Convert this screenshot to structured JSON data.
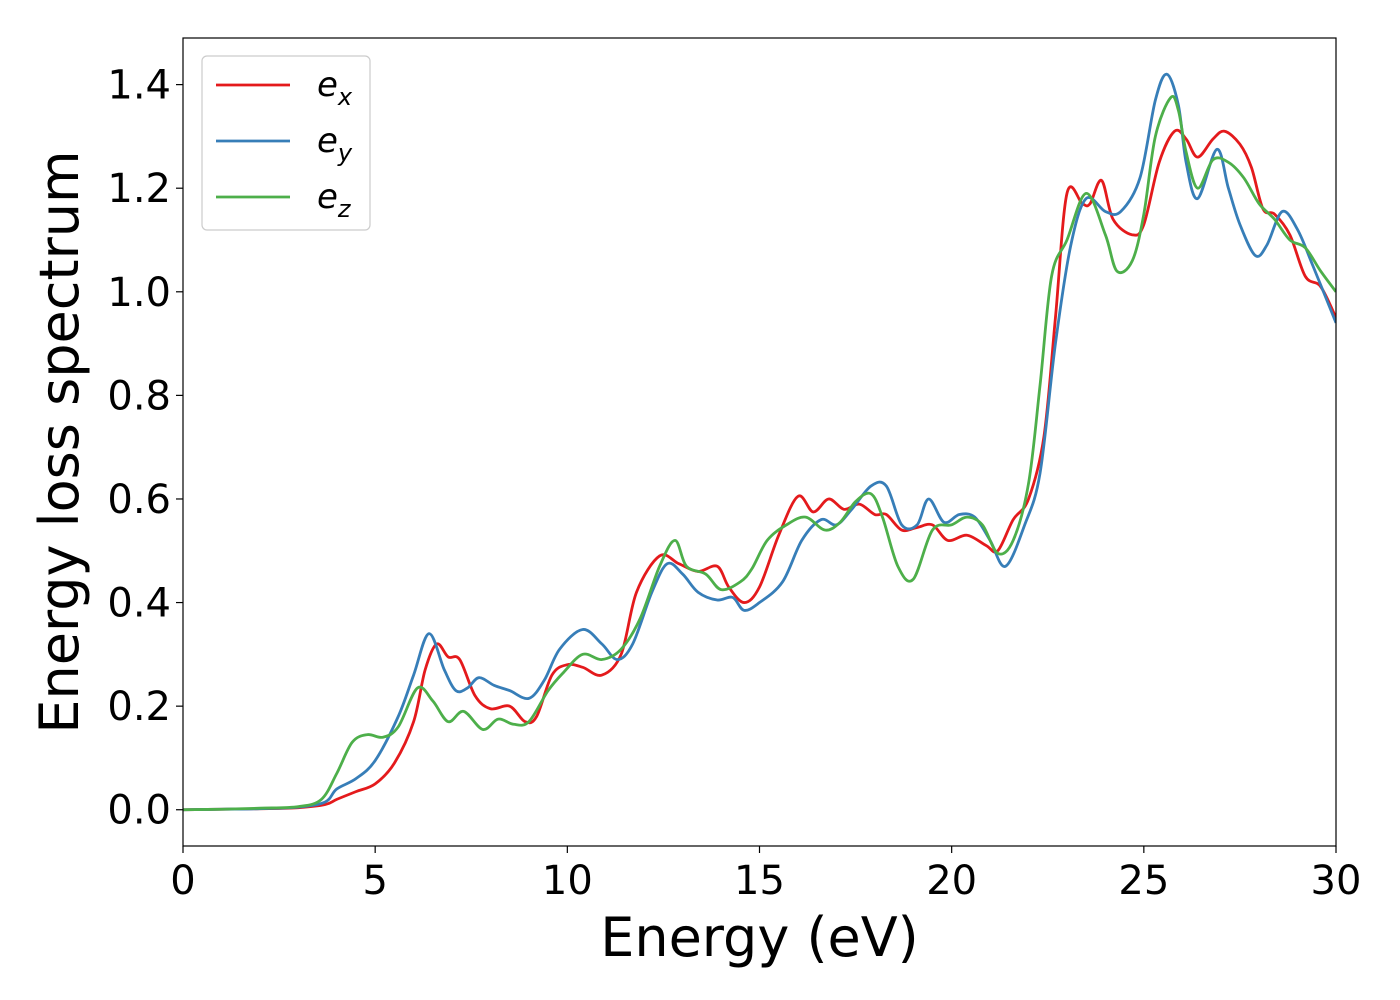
{
  "chart_data": {
    "type": "line",
    "title": "",
    "xlabel": "Energy (eV)",
    "ylabel": "Energy loss spectrum",
    "xlim": [
      0,
      30
    ],
    "ylim": [
      -0.07,
      1.49
    ],
    "xticks": [
      "0",
      "5",
      "10",
      "15",
      "20",
      "25",
      "30"
    ],
    "yticks": [
      "0.0",
      "0.2",
      "0.4",
      "0.6",
      "0.8",
      "1.0",
      "1.2",
      "1.4"
    ],
    "grid": false,
    "legend": "top-left",
    "series": [
      {
        "name": "e_x",
        "label_main": "e",
        "label_sub": "x",
        "color": "#e41a1c",
        "points": [
          [
            0,
            0
          ],
          [
            1,
            0.001
          ],
          [
            2,
            0.002
          ],
          [
            3,
            0.004
          ],
          [
            3.7,
            0.01
          ],
          [
            4,
            0.02
          ],
          [
            4.5,
            0.035
          ],
          [
            5,
            0.05
          ],
          [
            5.5,
            0.09
          ],
          [
            6,
            0.17
          ],
          [
            6.3,
            0.27
          ],
          [
            6.6,
            0.32
          ],
          [
            6.9,
            0.295
          ],
          [
            7.2,
            0.29
          ],
          [
            7.6,
            0.22
          ],
          [
            8,
            0.195
          ],
          [
            8.5,
            0.2
          ],
          [
            8.9,
            0.17
          ],
          [
            9.2,
            0.18
          ],
          [
            9.6,
            0.26
          ],
          [
            10,
            0.28
          ],
          [
            10.4,
            0.275
          ],
          [
            10.9,
            0.26
          ],
          [
            11.4,
            0.3
          ],
          [
            11.8,
            0.42
          ],
          [
            12.4,
            0.49
          ],
          [
            12.9,
            0.475
          ],
          [
            13.4,
            0.46
          ],
          [
            13.9,
            0.47
          ],
          [
            14.2,
            0.43
          ],
          [
            14.6,
            0.4
          ],
          [
            15,
            0.43
          ],
          [
            15.5,
            0.53
          ],
          [
            16,
            0.605
          ],
          [
            16.4,
            0.575
          ],
          [
            16.8,
            0.6
          ],
          [
            17.2,
            0.58
          ],
          [
            17.6,
            0.59
          ],
          [
            18,
            0.57
          ],
          [
            18.3,
            0.57
          ],
          [
            18.7,
            0.54
          ],
          [
            19.1,
            0.545
          ],
          [
            19.5,
            0.55
          ],
          [
            19.9,
            0.52
          ],
          [
            20.4,
            0.53
          ],
          [
            20.9,
            0.51
          ],
          [
            21.2,
            0.5
          ],
          [
            21.6,
            0.56
          ],
          [
            22,
            0.6
          ],
          [
            22.4,
            0.72
          ],
          [
            22.7,
            0.95
          ],
          [
            23,
            1.19
          ],
          [
            23.4,
            1.17
          ],
          [
            23.6,
            1.17
          ],
          [
            23.9,
            1.215
          ],
          [
            24.2,
            1.14
          ],
          [
            24.7,
            1.11
          ],
          [
            25,
            1.13
          ],
          [
            25.4,
            1.25
          ],
          [
            25.8,
            1.31
          ],
          [
            26.1,
            1.295
          ],
          [
            26.4,
            1.26
          ],
          [
            26.8,
            1.295
          ],
          [
            27.1,
            1.31
          ],
          [
            27.5,
            1.285
          ],
          [
            27.8,
            1.24
          ],
          [
            28.1,
            1.16
          ],
          [
            28.4,
            1.15
          ],
          [
            28.8,
            1.11
          ],
          [
            29.2,
            1.03
          ],
          [
            29.6,
            1.01
          ],
          [
            30,
            0.95
          ]
        ]
      },
      {
        "name": "e_y",
        "label_main": "e",
        "label_sub": "y",
        "color": "#377eb8",
        "points": [
          [
            0,
            0
          ],
          [
            1,
            0.001
          ],
          [
            2,
            0.002
          ],
          [
            3,
            0.005
          ],
          [
            3.7,
            0.015
          ],
          [
            4,
            0.04
          ],
          [
            4.5,
            0.06
          ],
          [
            5,
            0.095
          ],
          [
            5.6,
            0.18
          ],
          [
            6,
            0.26
          ],
          [
            6.4,
            0.34
          ],
          [
            6.8,
            0.27
          ],
          [
            7.1,
            0.23
          ],
          [
            7.4,
            0.235
          ],
          [
            7.7,
            0.255
          ],
          [
            8.1,
            0.24
          ],
          [
            8.5,
            0.23
          ],
          [
            9,
            0.215
          ],
          [
            9.4,
            0.25
          ],
          [
            9.8,
            0.31
          ],
          [
            10.4,
            0.348
          ],
          [
            10.9,
            0.32
          ],
          [
            11.3,
            0.29
          ],
          [
            11.7,
            0.32
          ],
          [
            12.2,
            0.42
          ],
          [
            12.6,
            0.475
          ],
          [
            13,
            0.455
          ],
          [
            13.4,
            0.42
          ],
          [
            13.9,
            0.405
          ],
          [
            14.3,
            0.41
          ],
          [
            14.6,
            0.385
          ],
          [
            15,
            0.4
          ],
          [
            15.6,
            0.44
          ],
          [
            16.1,
            0.52
          ],
          [
            16.6,
            0.56
          ],
          [
            17,
            0.55
          ],
          [
            17.4,
            0.58
          ],
          [
            17.9,
            0.625
          ],
          [
            18.3,
            0.625
          ],
          [
            18.7,
            0.55
          ],
          [
            19.1,
            0.55
          ],
          [
            19.4,
            0.6
          ],
          [
            19.8,
            0.555
          ],
          [
            20.2,
            0.57
          ],
          [
            20.6,
            0.565
          ],
          [
            21,
            0.52
          ],
          [
            21.4,
            0.47
          ],
          [
            21.9,
            0.55
          ],
          [
            22.3,
            0.65
          ],
          [
            22.7,
            0.9
          ],
          [
            23.1,
            1.09
          ],
          [
            23.5,
            1.18
          ],
          [
            24,
            1.155
          ],
          [
            24.4,
            1.155
          ],
          [
            24.9,
            1.22
          ],
          [
            25.3,
            1.37
          ],
          [
            25.6,
            1.42
          ],
          [
            25.9,
            1.36
          ],
          [
            26.1,
            1.25
          ],
          [
            26.4,
            1.18
          ],
          [
            26.9,
            1.275
          ],
          [
            27.2,
            1.2
          ],
          [
            27.5,
            1.13
          ],
          [
            27.9,
            1.07
          ],
          [
            28.2,
            1.09
          ],
          [
            28.6,
            1.155
          ],
          [
            29,
            1.12
          ],
          [
            29.4,
            1.05
          ],
          [
            30,
            0.94
          ]
        ]
      },
      {
        "name": "e_z",
        "label_main": "e",
        "label_sub": "z",
        "color": "#4daf4a",
        "points": [
          [
            0,
            0
          ],
          [
            1,
            0.001
          ],
          [
            2,
            0.003
          ],
          [
            3,
            0.006
          ],
          [
            3.6,
            0.02
          ],
          [
            4,
            0.07
          ],
          [
            4.4,
            0.13
          ],
          [
            4.8,
            0.145
          ],
          [
            5.2,
            0.14
          ],
          [
            5.6,
            0.16
          ],
          [
            6.1,
            0.235
          ],
          [
            6.5,
            0.21
          ],
          [
            6.9,
            0.17
          ],
          [
            7.3,
            0.19
          ],
          [
            7.8,
            0.155
          ],
          [
            8.2,
            0.175
          ],
          [
            8.6,
            0.165
          ],
          [
            9,
            0.17
          ],
          [
            9.5,
            0.23
          ],
          [
            9.9,
            0.265
          ],
          [
            10.4,
            0.3
          ],
          [
            10.9,
            0.29
          ],
          [
            11.4,
            0.31
          ],
          [
            11.9,
            0.37
          ],
          [
            12.4,
            0.47
          ],
          [
            12.8,
            0.52
          ],
          [
            13.1,
            0.47
          ],
          [
            13.6,
            0.455
          ],
          [
            14,
            0.425
          ],
          [
            14.5,
            0.44
          ],
          [
            14.8,
            0.465
          ],
          [
            15.2,
            0.52
          ],
          [
            15.7,
            0.55
          ],
          [
            16.2,
            0.565
          ],
          [
            16.7,
            0.54
          ],
          [
            17.1,
            0.555
          ],
          [
            17.5,
            0.595
          ],
          [
            17.9,
            0.61
          ],
          [
            18.2,
            0.565
          ],
          [
            18.6,
            0.47
          ],
          [
            19,
            0.445
          ],
          [
            19.5,
            0.54
          ],
          [
            20,
            0.55
          ],
          [
            20.4,
            0.565
          ],
          [
            20.8,
            0.55
          ],
          [
            21.2,
            0.495
          ],
          [
            21.6,
            0.52
          ],
          [
            22,
            0.63
          ],
          [
            22.3,
            0.82
          ],
          [
            22.6,
            1.03
          ],
          [
            23,
            1.1
          ],
          [
            23.5,
            1.19
          ],
          [
            24,
            1.11
          ],
          [
            24.3,
            1.04
          ],
          [
            24.7,
            1.06
          ],
          [
            25,
            1.15
          ],
          [
            25.3,
            1.3
          ],
          [
            25.7,
            1.375
          ],
          [
            25.9,
            1.35
          ],
          [
            26.1,
            1.27
          ],
          [
            26.4,
            1.2
          ],
          [
            26.8,
            1.255
          ],
          [
            27.2,
            1.25
          ],
          [
            27.6,
            1.22
          ],
          [
            28,
            1.17
          ],
          [
            28.4,
            1.14
          ],
          [
            28.8,
            1.1
          ],
          [
            29.2,
            1.085
          ],
          [
            29.6,
            1.04
          ],
          [
            30,
            1.0
          ]
        ]
      }
    ]
  }
}
